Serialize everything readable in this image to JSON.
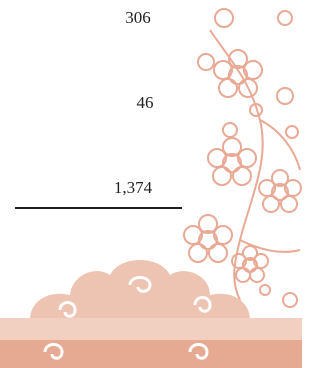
{
  "figures": [
    "306",
    "46",
    "1,374"
  ]
}
